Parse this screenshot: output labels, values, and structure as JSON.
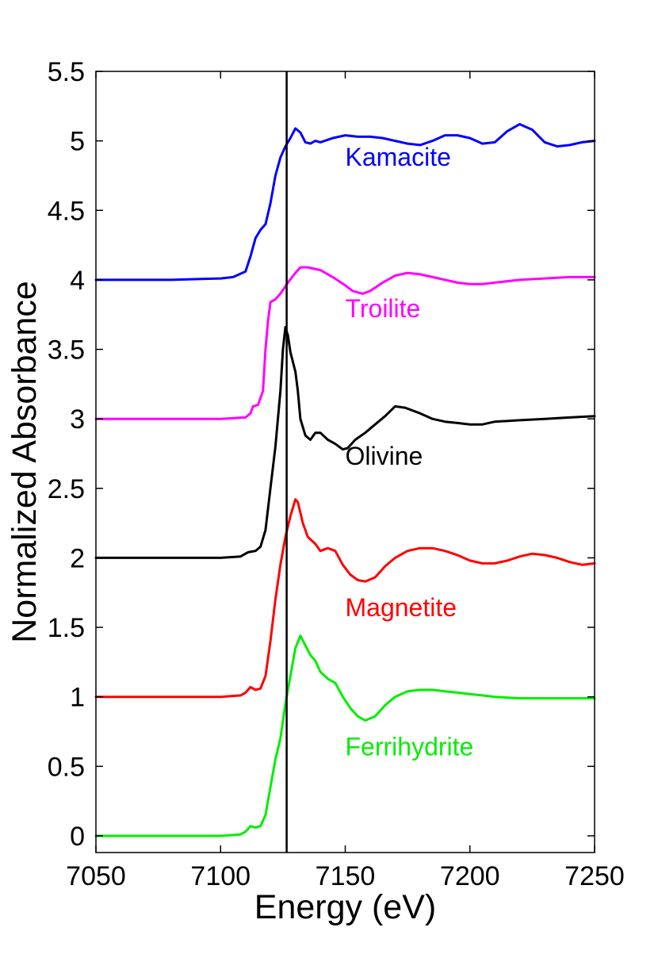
{
  "chart_data": {
    "type": "line",
    "xlabel": "Energy (eV)",
    "ylabel": "Normalized Absorbance",
    "xlim": [
      7050,
      7250
    ],
    "ylim": [
      -0.12,
      5.5
    ],
    "xticks": [
      7050,
      7100,
      7150,
      7200,
      7250
    ],
    "yticks": [
      0,
      0.5,
      1,
      1.5,
      2,
      2.5,
      3,
      3.5,
      4,
      4.5,
      5,
      5.5
    ],
    "ytick_labels": [
      "0",
      "0.5",
      "1",
      "1.5",
      "2",
      "2.5",
      "3",
      "3.5",
      "4",
      "4.5",
      "5",
      "5.5"
    ],
    "xtick_labels": [
      "7050",
      "7100",
      "7150",
      "7200",
      "7250"
    ],
    "grid": false,
    "reference_line": {
      "x": 7126.5,
      "color": "#000000"
    },
    "series": [
      {
        "name": "Kamacite",
        "color": "#0000ff",
        "label_pos": {
          "x": 7150,
          "y": 4.82
        },
        "points": [
          [
            7050,
            4.0
          ],
          [
            7080,
            4.0
          ],
          [
            7100,
            4.01
          ],
          [
            7105,
            4.02
          ],
          [
            7110,
            4.06
          ],
          [
            7112,
            4.17
          ],
          [
            7114,
            4.3
          ],
          [
            7116,
            4.36
          ],
          [
            7118,
            4.4
          ],
          [
            7120,
            4.55
          ],
          [
            7122,
            4.75
          ],
          [
            7124,
            4.88
          ],
          [
            7126,
            4.96
          ],
          [
            7128,
            5.02
          ],
          [
            7130,
            5.09
          ],
          [
            7132,
            5.06
          ],
          [
            7134,
            4.99
          ],
          [
            7136,
            4.98
          ],
          [
            7138,
            5.0
          ],
          [
            7140,
            4.99
          ],
          [
            7145,
            5.02
          ],
          [
            7150,
            5.04
          ],
          [
            7155,
            5.03
          ],
          [
            7160,
            5.03
          ],
          [
            7165,
            5.02
          ],
          [
            7170,
            5.0
          ],
          [
            7175,
            4.98
          ],
          [
            7180,
            4.97
          ],
          [
            7185,
            5.0
          ],
          [
            7190,
            5.04
          ],
          [
            7195,
            5.04
          ],
          [
            7200,
            5.02
          ],
          [
            7205,
            4.98
          ],
          [
            7210,
            4.99
          ],
          [
            7215,
            5.07
          ],
          [
            7220,
            5.12
          ],
          [
            7225,
            5.08
          ],
          [
            7230,
            4.99
          ],
          [
            7235,
            4.96
          ],
          [
            7240,
            4.97
          ],
          [
            7245,
            4.99
          ],
          [
            7250,
            5.0
          ]
        ]
      },
      {
        "name": "Troilite",
        "color": "#ff00ff",
        "label_pos": {
          "x": 7150,
          "y": 3.73
        },
        "points": [
          [
            7050,
            3.0
          ],
          [
            7100,
            3.0
          ],
          [
            7110,
            3.01
          ],
          [
            7112,
            3.04
          ],
          [
            7113,
            3.09
          ],
          [
            7115,
            3.1
          ],
          [
            7117,
            3.2
          ],
          [
            7118,
            3.5
          ],
          [
            7119,
            3.7
          ],
          [
            7120,
            3.84
          ],
          [
            7122,
            3.86
          ],
          [
            7124,
            3.9
          ],
          [
            7127,
            3.98
          ],
          [
            7130,
            4.05
          ],
          [
            7132,
            4.09
          ],
          [
            7135,
            4.09
          ],
          [
            7140,
            4.07
          ],
          [
            7145,
            4.02
          ],
          [
            7150,
            3.96
          ],
          [
            7153,
            3.92
          ],
          [
            7157,
            3.9
          ],
          [
            7160,
            3.92
          ],
          [
            7165,
            3.98
          ],
          [
            7170,
            4.03
          ],
          [
            7175,
            4.05
          ],
          [
            7180,
            4.04
          ],
          [
            7185,
            4.02
          ],
          [
            7190,
            4.0
          ],
          [
            7195,
            3.98
          ],
          [
            7200,
            3.97
          ],
          [
            7205,
            3.97
          ],
          [
            7210,
            3.98
          ],
          [
            7220,
            4.0
          ],
          [
            7230,
            4.01
          ],
          [
            7240,
            4.02
          ],
          [
            7250,
            4.02
          ]
        ]
      },
      {
        "name": "Olivine",
        "color": "#000000",
        "label_pos": {
          "x": 7150,
          "y": 2.67
        },
        "points": [
          [
            7050,
            2.0
          ],
          [
            7100,
            2.0
          ],
          [
            7108,
            2.01
          ],
          [
            7111,
            2.04
          ],
          [
            7114,
            2.05
          ],
          [
            7116,
            2.08
          ],
          [
            7118,
            2.2
          ],
          [
            7120,
            2.5
          ],
          [
            7122,
            2.8
          ],
          [
            7124,
            3.2
          ],
          [
            7125,
            3.5
          ],
          [
            7126,
            3.66
          ],
          [
            7127,
            3.6
          ],
          [
            7128,
            3.48
          ],
          [
            7130,
            3.34
          ],
          [
            7131,
            3.2
          ],
          [
            7132,
            3.0
          ],
          [
            7134,
            2.88
          ],
          [
            7136,
            2.85
          ],
          [
            7138,
            2.9
          ],
          [
            7140,
            2.9
          ],
          [
            7143,
            2.85
          ],
          [
            7146,
            2.82
          ],
          [
            7149,
            2.78
          ],
          [
            7151,
            2.79
          ],
          [
            7154,
            2.85
          ],
          [
            7158,
            2.9
          ],
          [
            7162,
            2.96
          ],
          [
            7166,
            3.02
          ],
          [
            7170,
            3.09
          ],
          [
            7174,
            3.08
          ],
          [
            7180,
            3.04
          ],
          [
            7185,
            3.0
          ],
          [
            7190,
            2.98
          ],
          [
            7195,
            2.97
          ],
          [
            7200,
            2.96
          ],
          [
            7205,
            2.96
          ],
          [
            7210,
            2.98
          ],
          [
            7220,
            2.99
          ],
          [
            7230,
            3.0
          ],
          [
            7240,
            3.01
          ],
          [
            7250,
            3.02
          ]
        ]
      },
      {
        "name": "Magnetite",
        "color": "#ff0000",
        "label_pos": {
          "x": 7150,
          "y": 1.58
        },
        "points": [
          [
            7050,
            1.0
          ],
          [
            7100,
            1.0
          ],
          [
            7108,
            1.01
          ],
          [
            7110,
            1.03
          ],
          [
            7112,
            1.07
          ],
          [
            7114,
            1.05
          ],
          [
            7116,
            1.06
          ],
          [
            7118,
            1.15
          ],
          [
            7120,
            1.4
          ],
          [
            7122,
            1.7
          ],
          [
            7124,
            1.95
          ],
          [
            7126,
            2.15
          ],
          [
            7128,
            2.3
          ],
          [
            7130,
            2.42
          ],
          [
            7131,
            2.4
          ],
          [
            7133,
            2.25
          ],
          [
            7135,
            2.15
          ],
          [
            7138,
            2.1
          ],
          [
            7140,
            2.05
          ],
          [
            7143,
            2.07
          ],
          [
            7146,
            2.05
          ],
          [
            7149,
            1.95
          ],
          [
            7152,
            1.88
          ],
          [
            7155,
            1.84
          ],
          [
            7158,
            1.83
          ],
          [
            7162,
            1.86
          ],
          [
            7166,
            1.94
          ],
          [
            7170,
            2.0
          ],
          [
            7175,
            2.05
          ],
          [
            7180,
            2.07
          ],
          [
            7185,
            2.07
          ],
          [
            7190,
            2.05
          ],
          [
            7195,
            2.02
          ],
          [
            7200,
            1.98
          ],
          [
            7205,
            1.96
          ],
          [
            7210,
            1.96
          ],
          [
            7215,
            1.98
          ],
          [
            7220,
            2.01
          ],
          [
            7225,
            2.03
          ],
          [
            7230,
            2.02
          ],
          [
            7235,
            2.0
          ],
          [
            7240,
            1.97
          ],
          [
            7245,
            1.95
          ],
          [
            7250,
            1.96
          ]
        ]
      },
      {
        "name": "Ferrihydrite",
        "color": "#00ee00",
        "label_pos": {
          "x": 7150,
          "y": 0.58
        },
        "points": [
          [
            7050,
            0.0
          ],
          [
            7100,
            0.0
          ],
          [
            7108,
            0.01
          ],
          [
            7110,
            0.03
          ],
          [
            7112,
            0.07
          ],
          [
            7114,
            0.06
          ],
          [
            7116,
            0.07
          ],
          [
            7118,
            0.15
          ],
          [
            7120,
            0.35
          ],
          [
            7122,
            0.55
          ],
          [
            7124,
            0.7
          ],
          [
            7126,
            0.95
          ],
          [
            7128,
            1.15
          ],
          [
            7130,
            1.35
          ],
          [
            7132,
            1.44
          ],
          [
            7134,
            1.37
          ],
          [
            7136,
            1.3
          ],
          [
            7138,
            1.26
          ],
          [
            7140,
            1.18
          ],
          [
            7143,
            1.13
          ],
          [
            7146,
            1.1
          ],
          [
            7149,
            1.0
          ],
          [
            7152,
            0.92
          ],
          [
            7155,
            0.86
          ],
          [
            7158,
            0.83
          ],
          [
            7162,
            0.86
          ],
          [
            7166,
            0.94
          ],
          [
            7170,
            1.0
          ],
          [
            7175,
            1.04
          ],
          [
            7180,
            1.05
          ],
          [
            7185,
            1.05
          ],
          [
            7190,
            1.04
          ],
          [
            7195,
            1.03
          ],
          [
            7200,
            1.02
          ],
          [
            7205,
            1.01
          ],
          [
            7210,
            1.0
          ],
          [
            7220,
            0.99
          ],
          [
            7230,
            0.99
          ],
          [
            7240,
            0.99
          ],
          [
            7250,
            0.99
          ]
        ]
      }
    ]
  }
}
